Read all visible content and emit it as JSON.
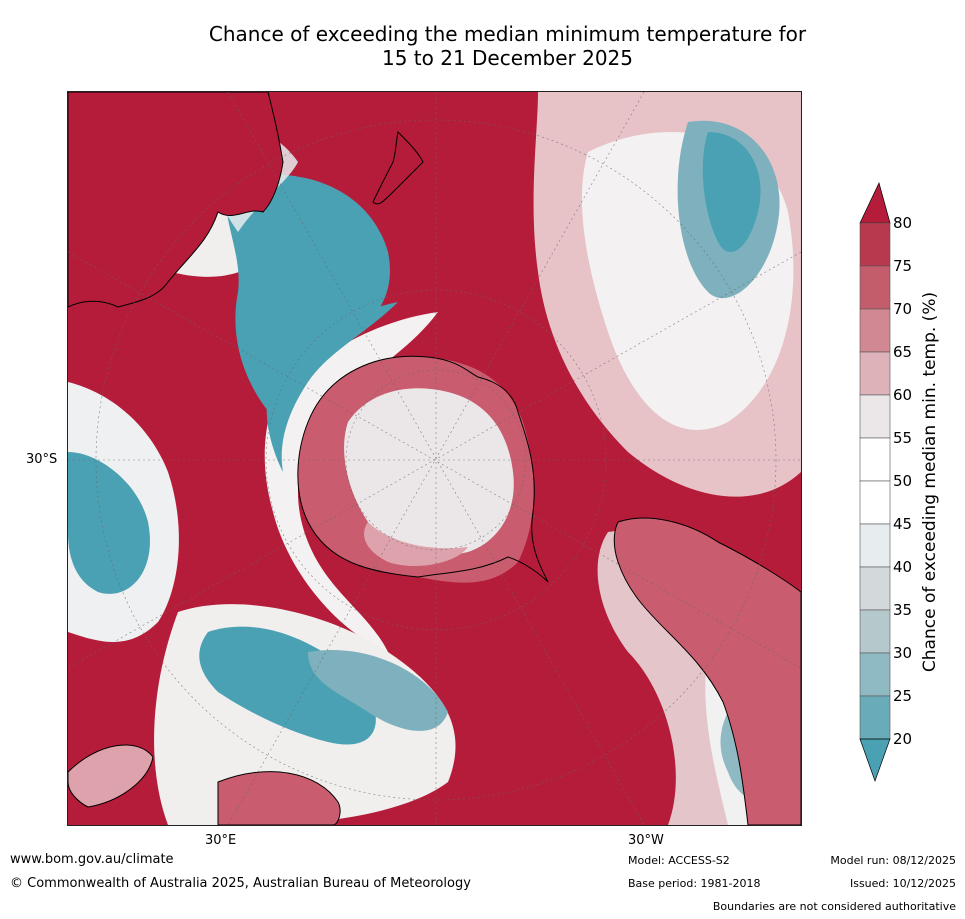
{
  "title": {
    "line1": "Chance of exceeding the median minimum temperature for",
    "line2": "15 to 21 December 2025"
  },
  "map": {
    "projection_labels": {
      "lat_left": "30°S",
      "lon_bottom_left": "30°E",
      "lon_bottom_right": "30°W"
    },
    "palette": {
      "red_dark": "#b51c3a",
      "red": "#c95d6f",
      "pink": "#dda2ab",
      "light": "#ebe7e8",
      "white": "#ffffff",
      "grey": "#d3d8db",
      "teal_light": "#a8c4cb",
      "teal": "#7eb1bd",
      "teal_dark": "#4aa1b4"
    }
  },
  "colorbar": {
    "title": "Chance of exceeding median min. temp. (%)",
    "ticks": [
      "80",
      "75",
      "70",
      "65",
      "60",
      "55",
      "50",
      "45",
      "40",
      "35",
      "30",
      "25",
      "20"
    ],
    "colors": [
      "#b8394e",
      "#c45d6b",
      "#d18893",
      "#ddb2b8",
      "#ebe7e8",
      "#ffffff",
      "#ffffff",
      "#e7ecef",
      "#d3d8db",
      "#b5c9cd",
      "#8fb9c3",
      "#6aabb9"
    ],
    "over_color": "#b51c3a",
    "under_color": "#4aa1b4"
  },
  "footer": {
    "url": "www.bom.gov.au/climate",
    "copyright": "© Commonwealth of Australia 2025, Australian Bureau of Meteorology",
    "model": "Model: ACCESS-S2",
    "base_period": "Base period: 1981-2018",
    "model_run": "Model run: 08/12/2025",
    "issued": "Issued: 10/12/2025",
    "disclaimer": "Boundaries are not considered authoritative"
  }
}
